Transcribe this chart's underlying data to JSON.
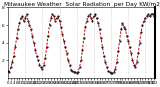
{
  "title": "Milwaukee Weather  Solar Radiation  per Day KW/m2",
  "title_fontsize": 4.2,
  "background_color": "#ffffff",
  "line_color": "#cc0000",
  "marker_color": "#000000",
  "grid_color": "#bbbbbb",
  "ylim": [
    0,
    8
  ],
  "ytick_values": [
    2,
    4,
    6,
    8
  ],
  "ytick_fontsize": 3.2,
  "xtick_fontsize": 2.8,
  "values": [
    0.8,
    0.7,
    1.2,
    1.8,
    2.5,
    3.5,
    4.5,
    5.5,
    6.2,
    6.8,
    7.0,
    6.5,
    6.8,
    7.2,
    6.5,
    6.0,
    5.5,
    4.8,
    4.0,
    3.2,
    2.5,
    2.0,
    1.5,
    1.2,
    1.0,
    1.5,
    2.2,
    3.5,
    4.8,
    6.0,
    6.8,
    7.2,
    7.0,
    6.5,
    6.8,
    7.0,
    6.5,
    5.8,
    5.0,
    4.2,
    3.5,
    2.8,
    2.0,
    1.5,
    0.9,
    0.8,
    0.7,
    0.6,
    0.5,
    0.7,
    1.2,
    2.0,
    3.2,
    4.5,
    5.8,
    6.5,
    7.0,
    7.2,
    6.8,
    6.5,
    7.0,
    7.2,
    6.8,
    6.2,
    5.5,
    4.5,
    3.5,
    2.5,
    1.8,
    1.2,
    0.8,
    0.6,
    0.5,
    0.5,
    0.6,
    1.0,
    1.8,
    3.0,
    4.2,
    5.5,
    6.2,
    5.8,
    5.5,
    4.8,
    4.2,
    3.5,
    2.8,
    2.0,
    1.5,
    1.2,
    1.8,
    2.8,
    4.0,
    5.2,
    6.0,
    6.5,
    6.8,
    7.0,
    7.2,
    7.0,
    7.2,
    7.3,
    7.0,
    7.2
  ],
  "vgrid_positions": [
    12,
    24,
    36,
    48,
    60,
    72,
    84,
    96
  ],
  "num_xticks": 52
}
